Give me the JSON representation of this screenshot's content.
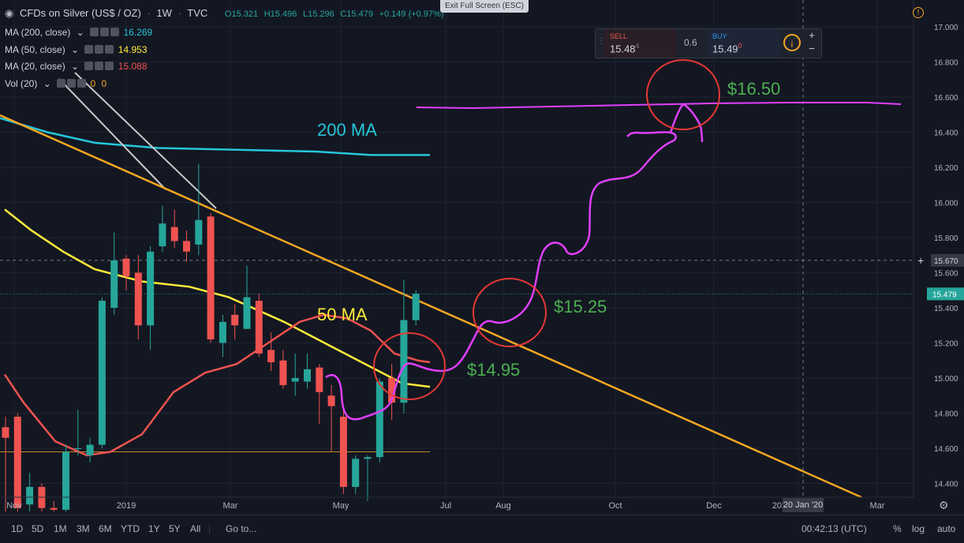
{
  "header": {
    "symbol_title": "CFDs on Silver (US$ / OZ)",
    "interval": "1W",
    "source": "TVC",
    "open": "O15.321",
    "high": "H15.496",
    "low": "L15.296",
    "close": "C15.479",
    "change": "+0.149 (+0.97%)",
    "exit_fullscreen": "Exit Full Screen (ESC)"
  },
  "indicators": [
    {
      "label": "MA (200, close)",
      "value": "16.269",
      "color": "#26c6da"
    },
    {
      "label": "MA (50, close)",
      "value": "14.953",
      "color": "#ffeb3b"
    },
    {
      "label": "MA (20, close)",
      "value": "15.088",
      "color": "#ef5350"
    },
    {
      "label": "Vol (20)",
      "value": "0",
      "value2": "0",
      "color": "#f5a623"
    }
  ],
  "trade": {
    "sell_label": "SELL",
    "sell_price": "15.48",
    "sell_price_suffix": "4",
    "spread": "0.6",
    "buy_label": "BUY",
    "buy_price": "15.49",
    "buy_price_suffix": "0",
    "plus": "+",
    "minus": "−"
  },
  "price_axis": {
    "ticks": [
      "17.000",
      "16.800",
      "16.600",
      "16.400",
      "16.200",
      "16.000",
      "15.800",
      "15.600",
      "15.400",
      "15.200",
      "15.000",
      "14.800",
      "14.600",
      "14.400"
    ],
    "crosshair_label": "15.670",
    "last_price_label": "15.479"
  },
  "time_axis": {
    "labels": [
      "Nov",
      "2019",
      "Mar",
      "May",
      "Jul",
      "Aug",
      "Oct",
      "Dec",
      "202",
      "Mar"
    ],
    "crosshair_date": "20 Jan '20"
  },
  "annotations": {
    "ma200": "200 MA",
    "ma50": "50 MA",
    "p1": "$14.95",
    "p2": "$15.25",
    "p3": "$16.50"
  },
  "toolbar": {
    "ranges": [
      "1D",
      "5D",
      "1M",
      "3M",
      "6M",
      "YTD",
      "1Y",
      "5Y",
      "All"
    ],
    "goto": "Go to...",
    "clock": "00:42:13 (UTC)",
    "percent": "%",
    "log": "log",
    "auto": "auto"
  },
  "chart_data": {
    "type": "candlestick",
    "y_range": [
      14.24,
      17.12
    ],
    "candles": [
      {
        "o": 14.72,
        "h": 14.78,
        "l": 14.24,
        "c": 14.66
      },
      {
        "o": 14.78,
        "h": 14.8,
        "l": 14.24,
        "c": 14.26
      },
      {
        "o": 14.28,
        "h": 14.46,
        "l": 14.24,
        "c": 14.38
      },
      {
        "o": 14.38,
        "h": 14.4,
        "l": 14.24,
        "c": 14.26
      },
      {
        "o": 14.26,
        "h": 14.3,
        "l": 14.24,
        "c": 14.25
      },
      {
        "o": 14.25,
        "h": 14.62,
        "l": 14.24,
        "c": 14.58
      },
      {
        "o": 14.6,
        "h": 14.82,
        "l": 14.56,
        "c": 14.6
      },
      {
        "o": 14.56,
        "h": 14.66,
        "l": 14.52,
        "c": 14.62
      },
      {
        "o": 14.62,
        "h": 15.46,
        "l": 14.6,
        "c": 15.44
      },
      {
        "o": 15.4,
        "h": 15.83,
        "l": 15.36,
        "c": 15.67
      },
      {
        "o": 15.68,
        "h": 15.7,
        "l": 15.5,
        "c": 15.58
      },
      {
        "o": 15.6,
        "h": 15.7,
        "l": 15.22,
        "c": 15.3
      },
      {
        "o": 15.3,
        "h": 15.75,
        "l": 15.16,
        "c": 15.72
      },
      {
        "o": 15.75,
        "h": 15.98,
        "l": 15.72,
        "c": 15.88
      },
      {
        "o": 15.86,
        "h": 15.96,
        "l": 15.74,
        "c": 15.78
      },
      {
        "o": 15.78,
        "h": 15.84,
        "l": 15.66,
        "c": 15.72
      },
      {
        "o": 15.76,
        "h": 16.22,
        "l": 15.7,
        "c": 15.9
      },
      {
        "o": 15.92,
        "h": 15.94,
        "l": 15.2,
        "c": 15.22
      },
      {
        "o": 15.2,
        "h": 15.36,
        "l": 15.12,
        "c": 15.32
      },
      {
        "o": 15.36,
        "h": 15.42,
        "l": 15.22,
        "c": 15.3
      },
      {
        "o": 15.28,
        "h": 15.64,
        "l": 15.28,
        "c": 15.46
      },
      {
        "o": 15.44,
        "h": 15.48,
        "l": 15.12,
        "c": 15.14
      },
      {
        "o": 15.16,
        "h": 15.26,
        "l": 15.04,
        "c": 15.09
      },
      {
        "o": 15.1,
        "h": 15.16,
        "l": 14.94,
        "c": 14.96
      },
      {
        "o": 14.98,
        "h": 15.14,
        "l": 14.9,
        "c": 15.0
      },
      {
        "o": 14.98,
        "h": 15.14,
        "l": 14.94,
        "c": 15.05
      },
      {
        "o": 15.06,
        "h": 15.08,
        "l": 14.74,
        "c": 14.92
      },
      {
        "o": 14.9,
        "h": 14.96,
        "l": 14.58,
        "c": 14.84
      },
      {
        "o": 14.78,
        "h": 14.82,
        "l": 14.34,
        "c": 14.38
      },
      {
        "o": 14.38,
        "h": 14.56,
        "l": 14.34,
        "c": 14.54
      },
      {
        "o": 14.54,
        "h": 14.56,
        "l": 14.3,
        "c": 14.55
      },
      {
        "o": 14.55,
        "h": 15.0,
        "l": 14.52,
        "c": 14.98
      },
      {
        "o": 15.0,
        "h": 15.08,
        "l": 14.76,
        "c": 14.86
      },
      {
        "o": 14.86,
        "h": 15.56,
        "l": 14.8,
        "c": 15.33
      },
      {
        "o": 15.33,
        "h": 15.5,
        "l": 15.3,
        "c": 15.48
      }
    ],
    "ma200": [
      [
        0,
        16.48
      ],
      [
        60,
        16.4
      ],
      [
        120,
        16.34
      ],
      [
        200,
        16.31
      ],
      [
        300,
        16.3
      ],
      [
        400,
        16.29
      ],
      [
        470,
        16.27
      ],
      [
        545,
        16.27
      ]
    ],
    "ma50": [
      [
        6,
        15.96
      ],
      [
        40,
        15.84
      ],
      [
        80,
        15.72
      ],
      [
        120,
        15.62
      ],
      [
        180,
        15.55
      ],
      [
        240,
        15.52
      ],
      [
        290,
        15.46
      ],
      [
        360,
        15.32
      ],
      [
        420,
        15.18
      ],
      [
        480,
        15.04
      ],
      [
        510,
        14.97
      ],
      [
        545,
        14.95
      ]
    ],
    "ma20": [
      [
        6,
        15.02
      ],
      [
        30,
        14.86
      ],
      [
        70,
        14.64
      ],
      [
        110,
        14.56
      ],
      [
        140,
        14.58
      ],
      [
        180,
        14.68
      ],
      [
        220,
        14.92
      ],
      [
        260,
        15.03
      ],
      [
        300,
        15.08
      ],
      [
        340,
        15.2
      ],
      [
        380,
        15.32
      ],
      [
        410,
        15.36
      ],
      [
        440,
        15.34
      ],
      [
        470,
        15.27
      ],
      [
        500,
        15.14
      ],
      [
        530,
        15.1
      ],
      [
        545,
        15.09
      ]
    ],
    "support_level": 14.58,
    "last_price": 15.479,
    "crosshair_price": 15.67
  }
}
